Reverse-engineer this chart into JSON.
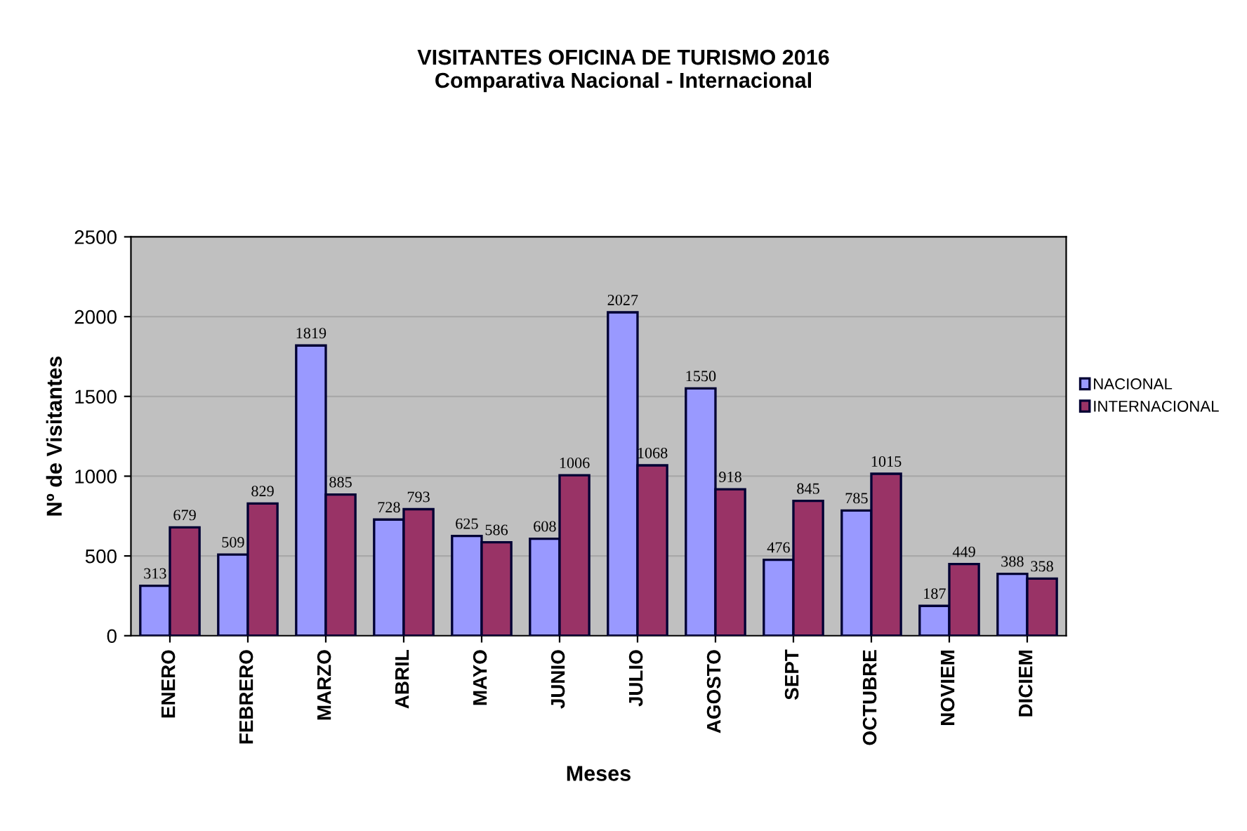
{
  "chart_data": {
    "type": "bar",
    "title": "VISITANTES OFICINA DE TURISMO 2016\nComparativa Nacional - Internacional",
    "xlabel": "Meses",
    "ylabel": "Nº de Visitantes",
    "categories": [
      "ENERO",
      "FEBRERO",
      "MARZO",
      "ABRIL",
      "MAYO",
      "JUNIO",
      "JULIO",
      "AGOSTO",
      "SEPT",
      "OCTUBRE",
      "NOVIEM",
      "DICIEM"
    ],
    "series": [
      {
        "name": "NACIONAL",
        "color": "#9999ff",
        "values": [
          313,
          509,
          1819,
          728,
          625,
          608,
          2027,
          1550,
          476,
          785,
          187,
          388
        ]
      },
      {
        "name": "INTERNACIONAL",
        "color": "#993366",
        "values": [
          679,
          829,
          885,
          793,
          586,
          1006,
          1068,
          918,
          845,
          1015,
          449,
          358
        ]
      }
    ],
    "ylim": [
      0,
      2500
    ],
    "yticks": [
      0,
      500,
      1000,
      1500,
      2000,
      2500
    ],
    "grid": "y",
    "legend": "right",
    "data_labels": true
  }
}
